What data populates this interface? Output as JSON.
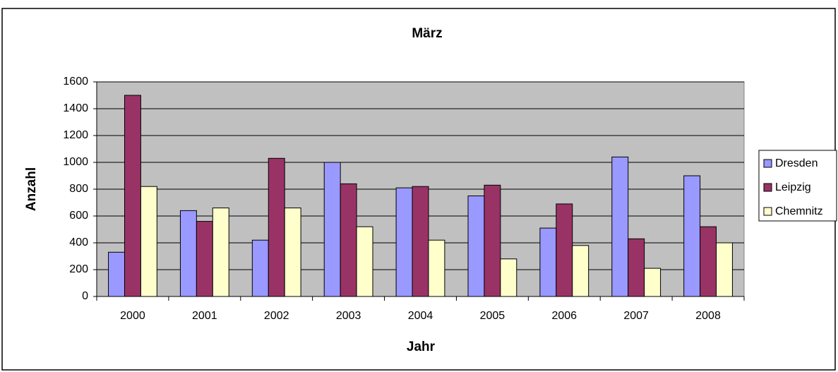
{
  "chart_data": {
    "type": "bar",
    "title": "März",
    "x_label": "Jahr",
    "y_label": "Anzahl",
    "categories": [
      "2000",
      "2001",
      "2002",
      "2003",
      "2004",
      "2005",
      "2006",
      "2007",
      "2008"
    ],
    "series": [
      {
        "name": "Dresden",
        "color": "#9999ff",
        "values": [
          330,
          640,
          420,
          1000,
          810,
          750,
          510,
          1040,
          900
        ]
      },
      {
        "name": "Leipzig",
        "color": "#993366",
        "values": [
          1500,
          560,
          1030,
          840,
          820,
          830,
          690,
          430,
          520
        ]
      },
      {
        "name": "Chemnitz",
        "color": "#ffffcc",
        "values": [
          820,
          660,
          660,
          520,
          420,
          280,
          380,
          210,
          400
        ]
      }
    ],
    "ylim": [
      0,
      1600
    ],
    "yticks": [
      0,
      200,
      400,
      600,
      800,
      1000,
      1200,
      1400,
      1600
    ],
    "grid": true,
    "legend": "right",
    "plot_background": "#c0c0c0"
  }
}
